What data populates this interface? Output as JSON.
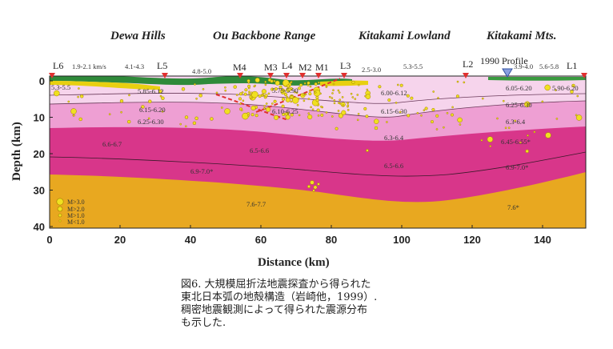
{
  "regions": [
    "Dewa Hills",
    "Ou Backbone Range",
    "Kitakami Lowland",
    "Kitakami Mts."
  ],
  "axes": {
    "x_label": "Distance (km)",
    "y_label": "Depth (km)",
    "x_ticks": [
      "0",
      "20",
      "40",
      "60",
      "80",
      "100",
      "120",
      "140"
    ],
    "y_ticks": [
      "0",
      "10",
      "20",
      "30",
      "40"
    ]
  },
  "stations": [
    "L6",
    "L5",
    "M4",
    "M3",
    "L4",
    "M2",
    "M1",
    "L3",
    "L2",
    "L1"
  ],
  "profile_label": "1990 Profile",
  "velocities": {
    "surface": [
      "1.9-2.1 km/s",
      "4.1-4.3",
      "4.8-5.0",
      "2.5-3.0",
      "5.3-5.5",
      "3.9-4.0",
      "5.6-5.8"
    ],
    "upper": [
      "5.3-5.5",
      "5.85-6.12",
      "5.75-5.90",
      "6.00-6.12",
      "6.05-6.20",
      "5.90-6.20"
    ],
    "middle": [
      "6.15-6.20",
      "6.25-6.30",
      "6.10-6.25",
      "6.15-6.30",
      "6.25-6.30",
      "6.3-6.4",
      "6.3-6.4"
    ],
    "lower": [
      "6.6-6.7",
      "6.5-6.6",
      "6.45-6.55*",
      "6.9-7.0*",
      "6.5-6.6",
      "6.9-7.0*"
    ],
    "mantle": [
      "7.6-7.7",
      "7.6*"
    ]
  },
  "legend": [
    "M>3.0",
    "M>2.0",
    "M>1.0",
    "M<1.0"
  ],
  "caption": [
    "図6. 大規模屈折法地震探査から得られた",
    "東北日本弧の地殻構造（岩崎他，1999）.",
    "稠密地震観測によって得られた震源分布",
    "も示した."
  ]
}
